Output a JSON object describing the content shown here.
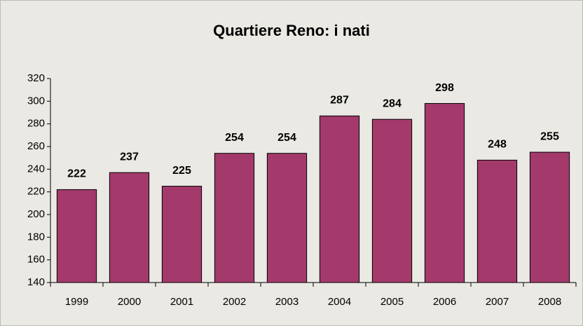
{
  "chart_data": {
    "type": "bar",
    "title": "Quartiere Reno: i nati",
    "categories": [
      "1999",
      "2000",
      "2001",
      "2002",
      "2003",
      "2004",
      "2005",
      "2006",
      "2007",
      "2008"
    ],
    "values": [
      222,
      237,
      225,
      254,
      254,
      287,
      284,
      298,
      248,
      255
    ],
    "color": "#a33a6b",
    "ylim": [
      140,
      320
    ],
    "yticks": [
      140,
      160,
      180,
      200,
      220,
      240,
      260,
      280,
      300,
      320
    ],
    "grid": false,
    "data_labels": true
  }
}
